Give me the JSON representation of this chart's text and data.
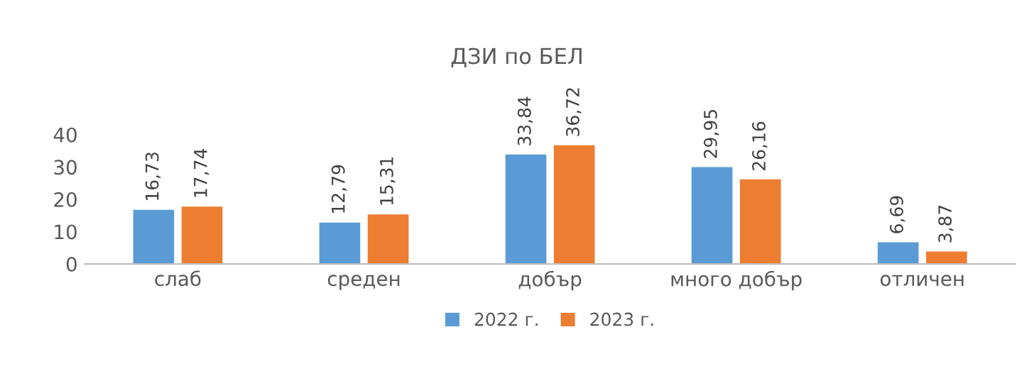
{
  "chart_data": {
    "type": "bar",
    "title": "ДЗИ по БЕЛ",
    "categories": [
      "слаб",
      "среден",
      "добър",
      "много добър",
      "отличен"
    ],
    "series": [
      {
        "name": "2022 г.",
        "color": "#5b9bd5",
        "values": [
          16.73,
          12.79,
          33.84,
          29.95,
          6.69
        ],
        "value_labels": [
          "16,73",
          "12,79",
          "33,84",
          "29,95",
          "6,69"
        ]
      },
      {
        "name": "2023 г.",
        "color": "#ed7d31",
        "values": [
          17.74,
          15.31,
          36.72,
          26.16,
          3.87
        ],
        "value_labels": [
          "17,74",
          "15,31",
          "36,72",
          "26,16",
          "3,87"
        ]
      }
    ],
    "ylim": [
      0,
      40
    ],
    "yticks": [
      0,
      10,
      20,
      30,
      40
    ],
    "grid": false,
    "legend": "bottom"
  }
}
